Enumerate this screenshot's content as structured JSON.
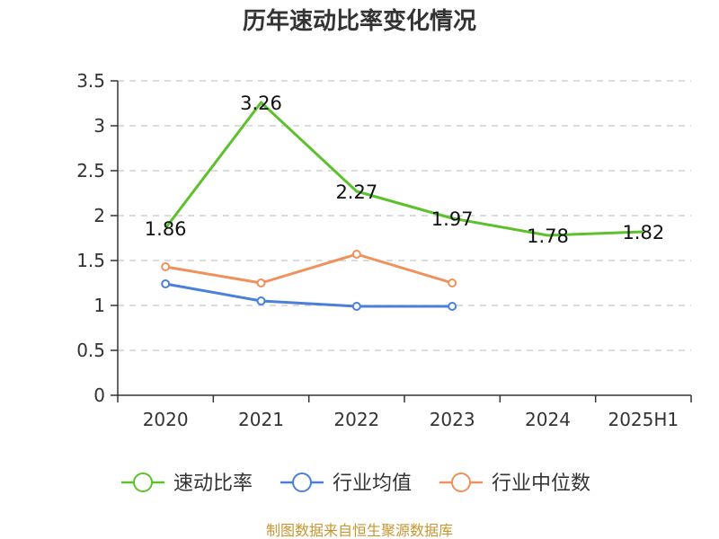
{
  "chart_data": {
    "type": "line",
    "title": "历年速动比率变化情况",
    "categories": [
      "2020",
      "2021",
      "2022",
      "2023",
      "2024",
      "2025H1"
    ],
    "yticks": [
      "0",
      "0.5",
      "1",
      "1.5",
      "2",
      "2.5",
      "3",
      "3.5"
    ],
    "ylim": [
      0,
      3.5
    ],
    "grid": true,
    "legend_position": "bottom",
    "series": [
      {
        "name": "速动比率",
        "color": "#5cc12c",
        "values": [
          1.86,
          3.26,
          2.27,
          1.97,
          1.78,
          1.82
        ],
        "labels": [
          "1.86",
          "3.26",
          "2.27",
          "1.97",
          "1.78",
          "1.82"
        ]
      },
      {
        "name": "行业均值",
        "color": "#4a7fdb",
        "values": [
          1.24,
          1.05,
          0.99,
          0.99,
          null,
          null
        ]
      },
      {
        "name": "行业中位数",
        "color": "#f0905a",
        "values": [
          1.43,
          1.25,
          1.57,
          1.25,
          null,
          null
        ]
      }
    ]
  },
  "source": "制图数据来自恒生聚源数据库"
}
